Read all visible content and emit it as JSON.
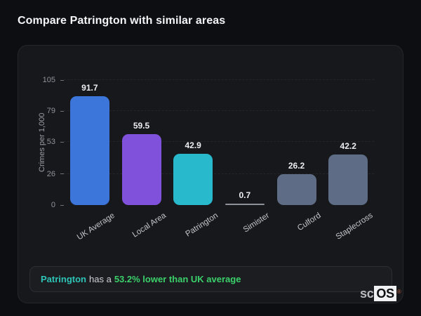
{
  "header": {
    "title": "Compare Patrington with similar areas"
  },
  "chart_data": {
    "type": "bar",
    "categories": [
      "UK Average",
      "Local Area",
      "Patrington",
      "Simister",
      "Culford",
      "Staplecross"
    ],
    "values": [
      91.7,
      59.5,
      42.9,
      0.7,
      26.2,
      42.2
    ],
    "value_labels": [
      "91.7",
      "59.5",
      "42.9",
      "0.7",
      "26.2",
      "42.2"
    ],
    "bar_colors": [
      "#3c76db",
      "#8051da",
      "#29b9cd",
      "#8d929a",
      "#5e6c85",
      "#5e6c85"
    ],
    "title": "",
    "xlabel": "",
    "ylabel": "Crimes per 1,000",
    "yticks": [
      0,
      26,
      53,
      79,
      105
    ],
    "ytick_labels": [
      "0",
      "26",
      "53",
      "79",
      "105"
    ],
    "ylim": [
      0,
      105
    ],
    "grid": "horizontal-dashed",
    "legend": "none",
    "xlabel_rotation_deg": -33
  },
  "note": {
    "area": "Patrington",
    "middle": "has a",
    "highlight": "53.2% lower than UK average"
  },
  "logo": {
    "prefix": "sc",
    "suffix": "OS",
    "registered": "®"
  },
  "colors": {
    "page_bg": "#0d0e12",
    "card_bg": "#17181c",
    "note_bg": "#1b1d21",
    "accent_teal": "#2ec4b6",
    "accent_green": "#3bd06a",
    "bar_blue": "#3c76db",
    "bar_purple": "#8051da",
    "bar_teal": "#29b9cd",
    "bar_slate": "#5e6c85"
  }
}
